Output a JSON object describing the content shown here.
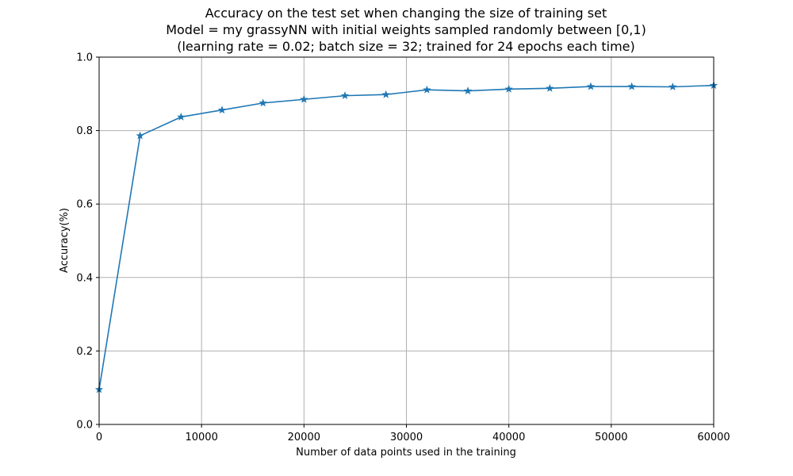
{
  "chart_data": {
    "type": "line",
    "title_lines": [
      "Accuracy on the test set when changing the size of training set",
      "Model = my grassyNN with initial weights sampled randomly between [0,1)",
      "(learning rate = 0.02; batch size = 32; trained for 24 epochs each time)"
    ],
    "xlabel": "Number of data points used in the training",
    "ylabel": "Accuracy(%)",
    "xlim": [
      0,
      60000
    ],
    "ylim": [
      0,
      1.0
    ],
    "xticks": [
      0,
      10000,
      20000,
      30000,
      40000,
      50000,
      60000
    ],
    "xtick_labels": [
      "0",
      "10000",
      "20000",
      "30000",
      "40000",
      "50000",
      "60000"
    ],
    "yticks": [
      0,
      0.2,
      0.4,
      0.6,
      0.8,
      1.0
    ],
    "ytick_labels": [
      "0.0",
      "0.2",
      "0.4",
      "0.6",
      "0.8",
      "1.0"
    ],
    "grid": true,
    "marker": "star",
    "series": [
      {
        "color": "#1f77b4",
        "x": [
          0,
          4000,
          8000,
          12000,
          16000,
          20000,
          24000,
          28000,
          32000,
          36000,
          40000,
          44000,
          48000,
          52000,
          56000,
          60000
        ],
        "y": [
          0.095,
          0.786,
          0.837,
          0.856,
          0.875,
          0.885,
          0.895,
          0.898,
          0.911,
          0.908,
          0.913,
          0.915,
          0.92,
          0.92,
          0.919,
          0.923
        ]
      }
    ]
  }
}
